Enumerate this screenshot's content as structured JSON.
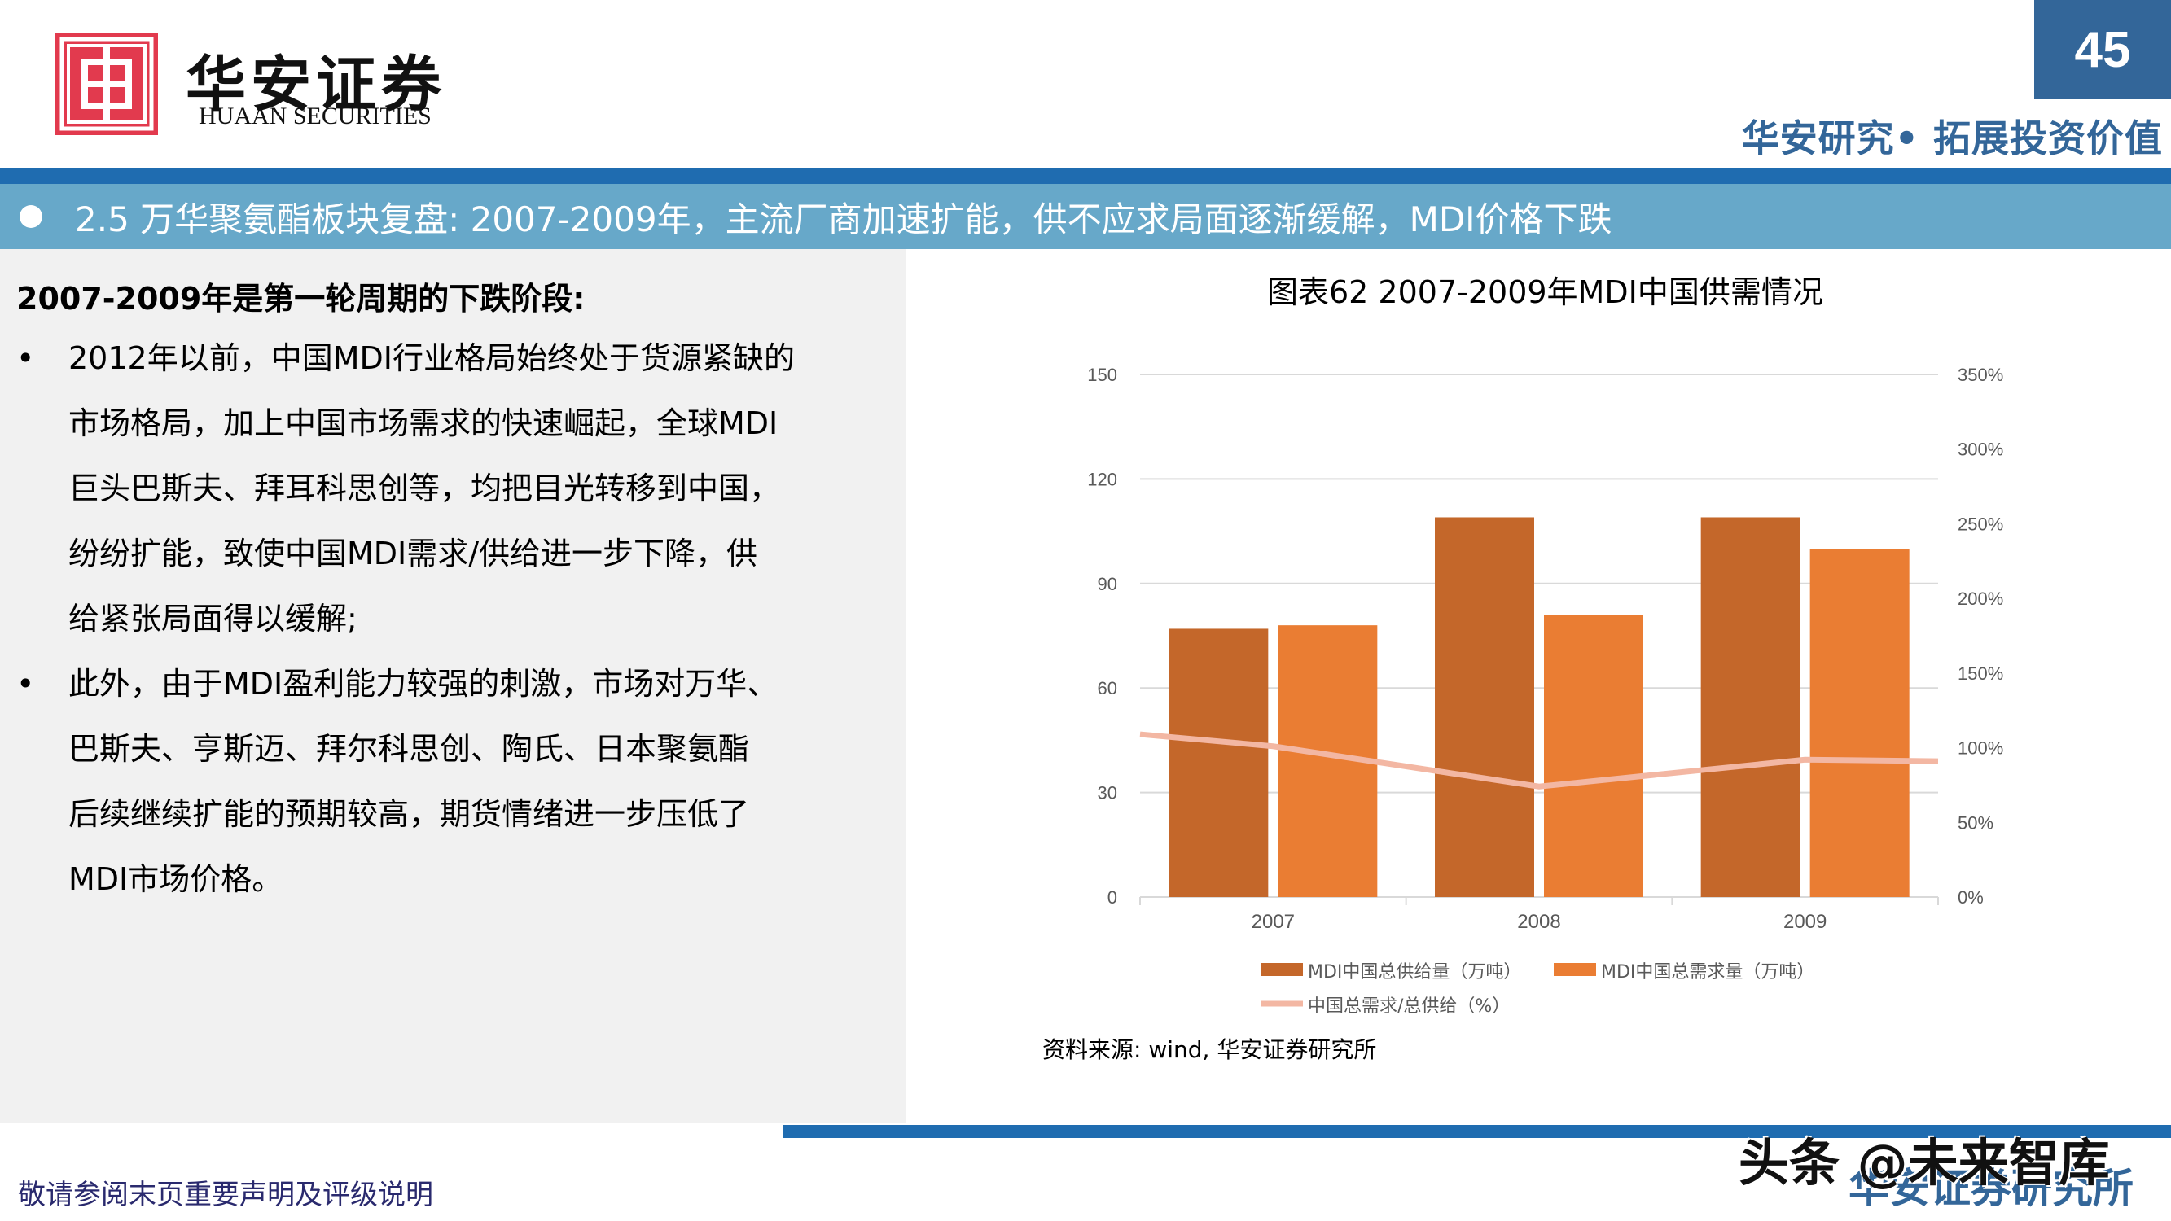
{
  "header": {
    "brand_cn": "华安证券",
    "brand_en": "HUAAN SECURITIES",
    "page_number": "45",
    "tagline": "华安研究• 拓展投资价值"
  },
  "banner": {
    "title": "2.5 万华聚氨酯板块复盘: 2007-2009年，主流厂商加速扩能，供不应求局面逐渐缓解，MDI价格下跌"
  },
  "left_panel": {
    "heading": "2007-2009年是第一轮周期的下跌阶段:",
    "bullet_symbol": "•",
    "bullets": [
      {
        "lines": [
          "2012年以前，中国MDI行业格局始终处于货源紧缺的",
          "市场格局，加上中国市场需求的快速崛起，全球MDI",
          "巨头巴斯夫、拜耳科思创等，均把目光转移到中国，",
          "纷纷扩能，致使中国MDI需求/供给进一步下降，供",
          "给紧张局面得以缓解;"
        ]
      },
      {
        "lines": [
          "此外，由于MDI盈利能力较强的刺激，市场对万华、",
          "巴斯夫、亨斯迈、拜尔科思创、陶氏、日本聚氨酯",
          "后续继续扩能的预期较高，期货情绪进一步压低了",
          "MDI市场价格。"
        ]
      }
    ]
  },
  "chart": {
    "title": "图表62 2007-2009年MDI中国供需情况",
    "source": "资料来源: wind, 华安证券研究所"
  },
  "chart_data": {
    "type": "bar",
    "title": "图表62 2007-2009年MDI中国供需情况",
    "categories": [
      "2007",
      "2008",
      "2009"
    ],
    "series": [
      {
        "name": "MDI中国总供给量（万吨）",
        "type": "bar",
        "axis": "left",
        "color": "#c4672a",
        "values": [
          77,
          109,
          109
        ]
      },
      {
        "name": "MDI中国总需求量（万吨）",
        "type": "bar",
        "axis": "left",
        "color": "#ea7d33",
        "values": [
          78,
          81,
          100
        ]
      },
      {
        "name": "中国总需求/总供给（%）",
        "type": "line",
        "axis": "right",
        "color": "#f3b7a3",
        "values": [
          101,
          74,
          92
        ]
      }
    ],
    "line_extended_endpoints": {
      "start": 109,
      "end": 91
    },
    "left_axis": {
      "min": 0,
      "max": 150,
      "ticks": [
        "0",
        "30",
        "60",
        "90",
        "120",
        "150"
      ]
    },
    "right_axis": {
      "min": 0,
      "max": 350,
      "ticks": [
        "0%",
        "50%",
        "100%",
        "150%",
        "200%",
        "250%",
        "300%",
        "350%"
      ]
    },
    "xlabel": "",
    "ylabel": "",
    "grid": true,
    "legend_position": "bottom",
    "legend": [
      "MDI中国总供给量（万吨）",
      "MDI中国总需求量（万吨）",
      "中国总需求/总供给（%）"
    ]
  },
  "footer": {
    "disclaimer": "敬请参阅末页重要声明及评级说明",
    "brand": "华安证券研究所",
    "watermark": "头条 @未来智库"
  }
}
